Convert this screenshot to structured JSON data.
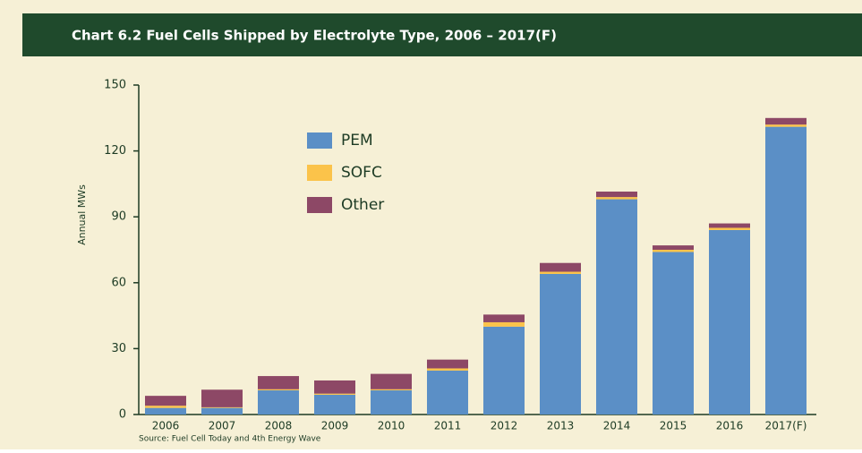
{
  "chart_data": {
    "type": "stacked-bar",
    "title": "Chart 6.2 Fuel Cells Shipped by Electrolyte Type, 2006 – 2017(F)",
    "y_label": "Annual MWs",
    "source": "Source: Fuel Cell Today and 4th Energy Wave",
    "categories": [
      "2006",
      "2007",
      "2008",
      "2009",
      "2010",
      "2011",
      "2012",
      "2013",
      "2014",
      "2015",
      "2016",
      "2017(F)"
    ],
    "series": [
      {
        "name": "PEM",
        "color": "#5b8fc6",
        "values": [
          3,
          3,
          11,
          9,
          11,
          20,
          40,
          64,
          98,
          74,
          84,
          131
        ]
      },
      {
        "name": "SOFC",
        "color": "#fbc34a",
        "values": [
          1,
          0.3,
          0.5,
          0.5,
          0.5,
          1,
          2,
          1,
          1,
          1,
          1,
          1
        ]
      },
      {
        "name": "Other",
        "color": "#8d4866",
        "values": [
          4.5,
          8,
          6,
          6,
          7,
          4,
          3.5,
          4,
          2.5,
          2,
          2,
          3
        ]
      }
    ],
    "ylim": [
      0,
      150
    ],
    "yticks": [
      0,
      30,
      60,
      90,
      120,
      150
    ],
    "legend": "upper-left"
  }
}
